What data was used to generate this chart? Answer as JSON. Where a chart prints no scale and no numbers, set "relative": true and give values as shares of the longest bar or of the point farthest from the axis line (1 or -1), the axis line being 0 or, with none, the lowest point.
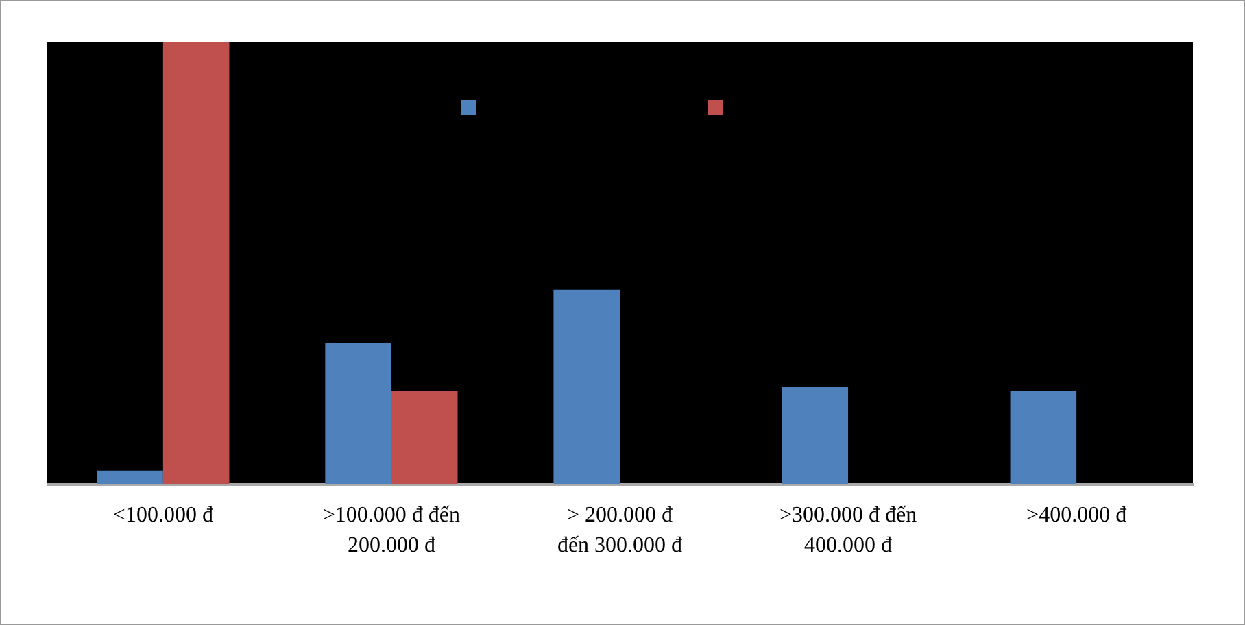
{
  "chart_data": {
    "type": "bar",
    "relative": true,
    "categories": [
      "<100.000 đ",
      ">100.000 đ đến 200.000 đ",
      "> 200.000 đ đến 300.000 đ",
      ">300.000 đ đến 400.000 đ",
      ">400.000 đ"
    ],
    "series": [
      {
        "color": "#4f81bd",
        "values": [
          0.03,
          0.32,
          0.44,
          0.22,
          0.21
        ]
      },
      {
        "color": "#c0504d",
        "values": [
          1,
          0.21,
          0,
          0,
          0
        ]
      }
    ]
  }
}
